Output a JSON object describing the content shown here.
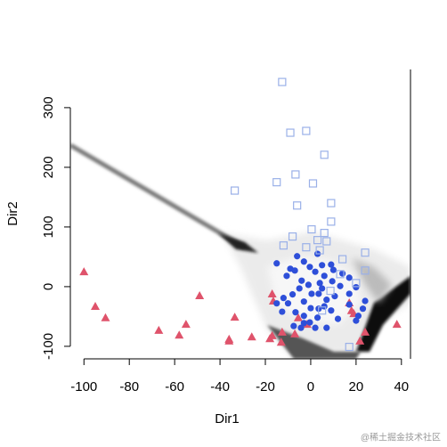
{
  "chart_data": {
    "type": "scatter",
    "xlabel": "Dir1",
    "ylabel": "Dir2",
    "xlim": [
      -106,
      44
    ],
    "ylim": [
      -121,
      364
    ],
    "xticks": [
      -100,
      -80,
      -60,
      -40,
      -20,
      0,
      20,
      40
    ],
    "yticks": [
      -100,
      0,
      100,
      200,
      300
    ],
    "series": [
      {
        "color": "#df536b",
        "marker": "triangle",
        "x": [
          -100,
          -95,
          -90.5,
          -67,
          -58,
          -55,
          -49,
          -36,
          -36,
          -33.5,
          -26,
          -18,
          -17,
          -17,
          -16.5,
          -12.6,
          -13,
          -7,
          -5.5,
          -1.6,
          18,
          19,
          21.7,
          24,
          38,
          17
        ],
        "values": [
          25,
          -33,
          -52,
          -73,
          -81,
          -63,
          -15,
          -88,
          -91,
          -51,
          -84,
          -87,
          -82,
          -12,
          -24,
          -76,
          -93,
          -79,
          -52,
          -63,
          -40,
          -45,
          -91,
          -76,
          -63,
          -27
        ]
      },
      {
        "color": "#2e4fd9",
        "marker": "circle",
        "x": [
          -15,
          -9,
          -7,
          -4,
          -0.4,
          2,
          3,
          5,
          9,
          10,
          14,
          17,
          17,
          20,
          24,
          23,
          20,
          12,
          9,
          7,
          3.5,
          -1,
          -5,
          -8,
          -12,
          -15,
          -12.6,
          -10,
          -6.7,
          -3,
          0,
          3,
          7,
          2,
          -3,
          -7.5,
          -4.3,
          4,
          0.4,
          -3,
          6,
          10.6,
          13,
          9.5,
          6,
          -3,
          -10.6,
          -6,
          17,
          21,
          3.5,
          -0.4,
          5
        ],
        "values": [
          39,
          30,
          27,
          10,
          33,
          25,
          55,
          36,
          37,
          28,
          22,
          15,
          -12,
          -1,
          -24,
          -37,
          -57,
          -54,
          -40,
          -22,
          -12,
          3,
          -3,
          -13,
          -19,
          -28,
          -42,
          -28,
          -43,
          -49,
          -36,
          -52,
          -69,
          -69,
          -61,
          -66,
          -69,
          6,
          -12,
          -25,
          -33,
          -16,
          1,
          9,
          18,
          42,
          18,
          51,
          -30,
          -49,
          -37,
          -60,
          -3
        ]
      },
      {
        "color": "#9ab0e8",
        "marker": "square",
        "x": [
          -12.6,
          -9,
          -2,
          6,
          -33.5,
          -15,
          -6.7,
          1,
          -6,
          9,
          9,
          6,
          -12,
          -8,
          3,
          4,
          7,
          14,
          24,
          24,
          20,
          8.7,
          5,
          17,
          0.4,
          -2,
          13
        ],
        "values": [
          343,
          258,
          261,
          221,
          161,
          175,
          188,
          173,
          136,
          140,
          109,
          90,
          69,
          84,
          78,
          61,
          76,
          46,
          57,
          27,
          6,
          -7,
          -40,
          -101,
          96,
          66,
          21
        ]
      }
    ],
    "watermark": "@稀土掘金技术社区"
  }
}
